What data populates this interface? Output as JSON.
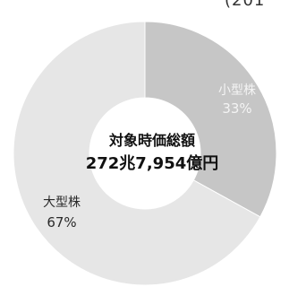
{
  "header_fragment": "(201",
  "chart_data": {
    "type": "pie",
    "donut": true,
    "center_title": "対象時価総額",
    "center_value": "272兆7,954億円",
    "slices": [
      {
        "name": "小型株",
        "value": 33,
        "label": "33%",
        "color": "#c6c6c6"
      },
      {
        "name": "大型株",
        "value": 67,
        "label": "67%",
        "color": "#e6e6e6"
      }
    ]
  }
}
